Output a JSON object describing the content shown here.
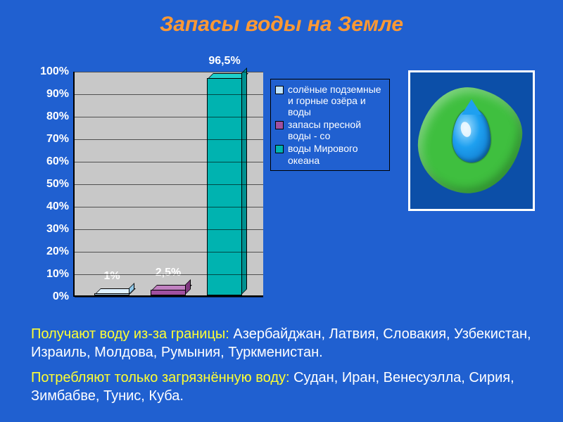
{
  "title": "Запасы воды на Земле",
  "chart": {
    "type": "bar",
    "categories": [
      "солёные подземные и горные озёра и воды",
      "запасы пресной воды - со",
      "воды Мирового океана"
    ],
    "values": [
      1,
      2.5,
      96.5
    ],
    "value_labels": [
      "1%",
      "2,5%",
      "96,5%"
    ],
    "bar_colors": [
      "#bfe4ff",
      "#a050a0",
      "#00b3b0"
    ],
    "bar_top_colors": [
      "#e0f2ff",
      "#c080c0",
      "#20d0cc"
    ],
    "bar_side_colors": [
      "#90c8e8",
      "#803880",
      "#009090"
    ],
    "ylim": [
      0,
      100
    ],
    "ytick_step": 10,
    "ytick_suffix": "%",
    "background_color": "#c8c8c8",
    "grid_color": "#000000",
    "axis_label_fontsize": 16,
    "value_label_fontsize": 16
  },
  "legend": {
    "items": [
      {
        "label": "солёные подземные и горные озёра и воды",
        "color": "#bfe4ff"
      },
      {
        "label": "запасы пресной воды - со",
        "color": "#a050a0"
      },
      {
        "label": "воды Мирового океана",
        "color": "#00b3b0"
      }
    ]
  },
  "image": {
    "name": "leaf-waterdrop-infographic",
    "leaf_color": "#3fbf3f",
    "drop_color": "#1ea0f0",
    "border_color": "#ffffff",
    "bg_color": "#0c4fa8"
  },
  "text_blocks": [
    {
      "lead": "Получают воду из-за границы: ",
      "list": "Азербайджан, Латвия, Словакия, Узбекистан, Израиль, Молдова, Румыния, Туркменистан."
    },
    {
      "lead": "Потребляют только загрязнённую воду: ",
      "list": "Судан, Иран, Венесуэлла, Сирия, Зимбабве, Тунис, Куба."
    }
  ],
  "colors": {
    "page_bg": "#2060d0",
    "title": "#ff9933",
    "lead_text": "#ffff33",
    "list_text": "#ffffff",
    "axis_text": "#ffffff"
  },
  "fonts": {
    "title_size": 30,
    "title_style": "italic bold",
    "body_size": 20,
    "axis_size": 16,
    "legend_size": 14
  }
}
